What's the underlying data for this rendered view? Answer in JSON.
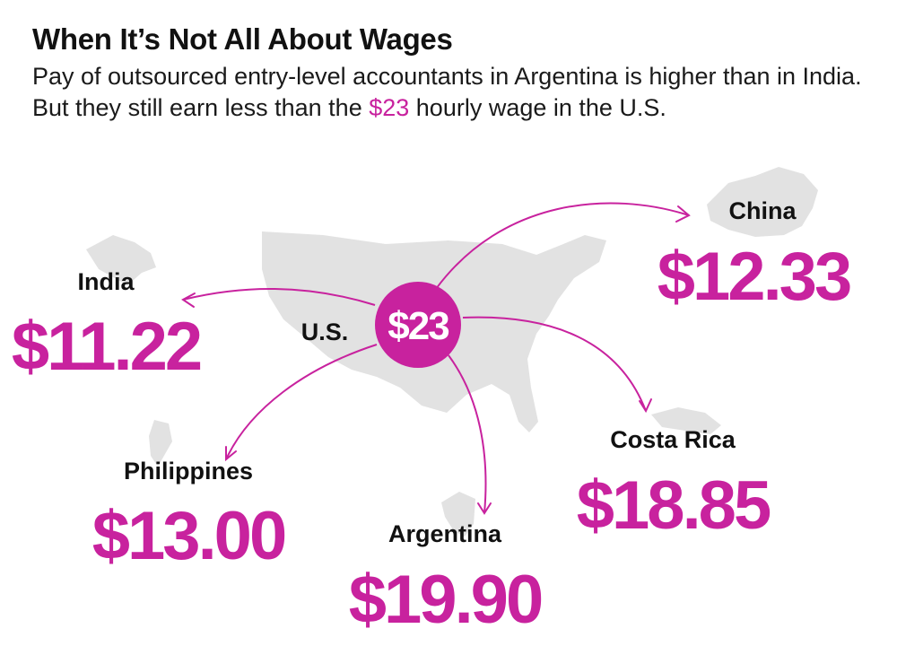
{
  "header": {
    "title": "When It’s Not All About Wages",
    "subtitle_part1": "Pay of outsourced entry-level accountants in Argentina is higher than in India. But they still earn less than the ",
    "subtitle_highlight": "$23",
    "subtitle_part2": " hourly wage in the U.S."
  },
  "hub": {
    "country": "U.S.",
    "wage": "$23"
  },
  "destinations": [
    {
      "key": "china",
      "country": "China",
      "wage": "$12.33"
    },
    {
      "key": "india",
      "country": "India",
      "wage": "$11.22"
    },
    {
      "key": "costa_rica",
      "country": "Costa Rica",
      "wage": "$18.85"
    },
    {
      "key": "philippines",
      "country": "Philippines",
      "wage": "$13.00"
    },
    {
      "key": "argentina",
      "country": "Argentina",
      "wage": "$19.90"
    }
  ],
  "colors": {
    "accent": "#c8229e",
    "land": "#e2e2e2",
    "text": "#111111"
  }
}
